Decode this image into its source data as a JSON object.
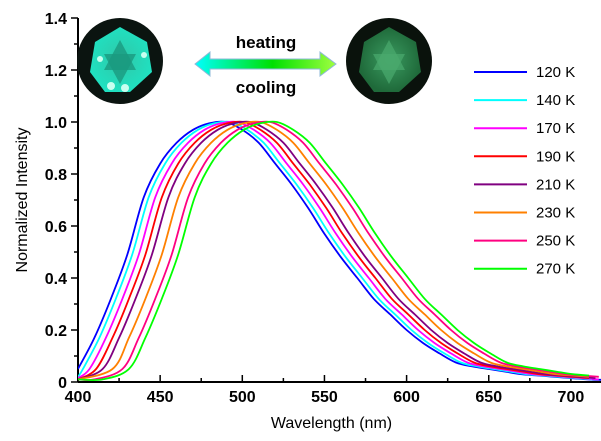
{
  "chart_data": {
    "type": "line",
    "title": "",
    "xlabel": "Wavelength (nm)",
    "ylabel": "Normalized Intensity",
    "xlim": [
      400,
      720
    ],
    "ylim": [
      0,
      1.4
    ],
    "xticks": [
      400,
      450,
      500,
      550,
      600,
      650,
      700
    ],
    "xtick_labels": [
      "400",
      "450",
      "500",
      "550",
      "600",
      "650",
      "700"
    ],
    "yticks": [
      0,
      0.2,
      0.4,
      0.6,
      0.8,
      1.0,
      1.2,
      1.4
    ],
    "ytick_labels": [
      "0",
      "0.2",
      "0.4",
      "0.6",
      "0.8",
      "1.0",
      "1.2",
      "1.4"
    ],
    "grid": false,
    "legend_position": "right",
    "annotations": {
      "top": "heating",
      "bottom": "cooling",
      "arrow_colors": [
        "#00ffff",
        "#00e000",
        "#a0ff40"
      ]
    },
    "series": [
      {
        "name": "120 K",
        "color": "#0000ff",
        "x": [
          400,
          410,
          420,
          430,
          440,
          450,
          460,
          470,
          480,
          490,
          500,
          510,
          520,
          530,
          540,
          550,
          560,
          570,
          580,
          590,
          600,
          610,
          620,
          630,
          640,
          650,
          660,
          670,
          680,
          690,
          700,
          710,
          720
        ],
        "y": [
          0.05,
          0.17,
          0.32,
          0.49,
          0.71,
          0.84,
          0.92,
          0.97,
          0.995,
          1.0,
          0.97,
          0.92,
          0.84,
          0.76,
          0.67,
          0.57,
          0.48,
          0.4,
          0.32,
          0.26,
          0.2,
          0.15,
          0.11,
          0.075,
          0.06,
          0.05,
          0.04,
          0.03,
          0.025,
          0.02,
          0.015,
          0.01,
          0.008
        ]
      },
      {
        "name": "140 K",
        "color": "#00ffff",
        "x": [
          400,
          403,
          413,
          423,
          433,
          443,
          453,
          463,
          473,
          483,
          493,
          503,
          513,
          523,
          533,
          543,
          553,
          563,
          573,
          583,
          593,
          603,
          613,
          623,
          633,
          643,
          653,
          663,
          673,
          683,
          693,
          703,
          713
        ],
        "y": [
          0.02,
          0.05,
          0.17,
          0.32,
          0.49,
          0.71,
          0.84,
          0.92,
          0.97,
          0.995,
          1.0,
          0.97,
          0.92,
          0.84,
          0.76,
          0.67,
          0.57,
          0.48,
          0.4,
          0.32,
          0.26,
          0.2,
          0.15,
          0.11,
          0.075,
          0.06,
          0.05,
          0.04,
          0.03,
          0.025,
          0.02,
          0.015,
          0.01
        ]
      },
      {
        "name": "170 K",
        "color": "#ff00ff",
        "x": [
          400,
          407,
          417,
          427,
          437,
          447,
          457,
          467,
          477,
          487,
          497,
          507,
          517,
          527,
          537,
          547,
          557,
          567,
          577,
          587,
          597,
          607,
          617,
          627,
          637,
          647,
          657,
          667,
          677,
          687,
          697,
          707,
          717
        ],
        "y": [
          0.015,
          0.05,
          0.17,
          0.32,
          0.49,
          0.71,
          0.84,
          0.92,
          0.97,
          0.995,
          1.0,
          0.97,
          0.92,
          0.84,
          0.76,
          0.67,
          0.57,
          0.48,
          0.4,
          0.32,
          0.26,
          0.2,
          0.15,
          0.11,
          0.075,
          0.06,
          0.05,
          0.04,
          0.03,
          0.025,
          0.02,
          0.015,
          0.01
        ]
      },
      {
        "name": "190 K",
        "color": "#ff0000",
        "x": [
          400,
          411,
          421,
          431,
          441,
          451,
          461,
          471,
          481,
          491,
          501,
          511,
          521,
          531,
          541,
          551,
          561,
          571,
          581,
          591,
          601,
          611,
          621,
          631,
          641,
          651,
          661,
          671,
          681,
          691,
          701,
          711
        ],
        "y": [
          0.01,
          0.05,
          0.17,
          0.32,
          0.49,
          0.71,
          0.84,
          0.92,
          0.97,
          0.995,
          1.0,
          0.97,
          0.92,
          0.84,
          0.76,
          0.67,
          0.57,
          0.48,
          0.4,
          0.32,
          0.26,
          0.2,
          0.15,
          0.11,
          0.075,
          0.06,
          0.05,
          0.04,
          0.03,
          0.025,
          0.02,
          0.015
        ]
      },
      {
        "name": "210 K",
        "color": "#800080",
        "x": [
          400,
          415,
          425,
          435,
          445,
          455,
          465,
          475,
          485,
          495,
          505,
          515,
          525,
          535,
          545,
          555,
          565,
          575,
          585,
          595,
          605,
          615,
          625,
          635,
          645,
          655,
          665,
          675,
          685,
          695,
          705,
          715
        ],
        "y": [
          0.01,
          0.05,
          0.17,
          0.32,
          0.49,
          0.71,
          0.84,
          0.92,
          0.97,
          0.995,
          1.0,
          0.97,
          0.92,
          0.84,
          0.76,
          0.67,
          0.57,
          0.48,
          0.4,
          0.32,
          0.26,
          0.2,
          0.15,
          0.11,
          0.075,
          0.06,
          0.05,
          0.04,
          0.03,
          0.025,
          0.02,
          0.015
        ]
      },
      {
        "name": "230 K",
        "color": "#ff8000",
        "x": [
          400,
          421,
          431,
          441,
          451,
          461,
          471,
          481,
          491,
          501,
          511,
          521,
          531,
          541,
          551,
          561,
          571,
          581,
          591,
          601,
          611,
          621,
          631,
          641,
          651,
          661,
          671,
          681,
          691,
          701,
          711
        ],
        "y": [
          0.01,
          0.05,
          0.17,
          0.32,
          0.49,
          0.71,
          0.84,
          0.92,
          0.97,
          0.995,
          1.0,
          0.97,
          0.92,
          0.84,
          0.76,
          0.67,
          0.57,
          0.48,
          0.4,
          0.32,
          0.26,
          0.2,
          0.15,
          0.11,
          0.075,
          0.06,
          0.05,
          0.04,
          0.03,
          0.025,
          0.02
        ]
      },
      {
        "name": "250 K",
        "color": "#ff0080",
        "x": [
          400,
          410,
          427,
          437,
          447,
          457,
          467,
          477,
          487,
          497,
          507,
          517,
          527,
          537,
          547,
          557,
          567,
          577,
          587,
          597,
          607,
          617,
          627,
          637,
          647,
          657,
          667,
          677,
          687,
          697,
          707,
          717
        ],
        "y": [
          0.01,
          0.01,
          0.05,
          0.17,
          0.32,
          0.49,
          0.71,
          0.84,
          0.92,
          0.97,
          0.995,
          1.0,
          0.97,
          0.92,
          0.84,
          0.76,
          0.67,
          0.57,
          0.48,
          0.4,
          0.32,
          0.26,
          0.2,
          0.15,
          0.11,
          0.075,
          0.06,
          0.05,
          0.04,
          0.03,
          0.025,
          0.02
        ]
      },
      {
        "name": "270 K",
        "color": "#00ff00",
        "x": [
          400,
          415,
          431,
          441,
          451,
          461,
          471,
          481,
          491,
          501,
          511,
          521,
          531,
          541,
          551,
          561,
          571,
          581,
          591,
          601,
          611,
          621,
          631,
          641,
          651,
          661,
          671,
          681,
          691,
          701,
          711
        ],
        "y": [
          0.01,
          0.01,
          0.05,
          0.17,
          0.32,
          0.49,
          0.71,
          0.84,
          0.92,
          0.97,
          0.995,
          1.0,
          0.97,
          0.92,
          0.84,
          0.76,
          0.67,
          0.57,
          0.48,
          0.4,
          0.32,
          0.26,
          0.2,
          0.15,
          0.11,
          0.075,
          0.06,
          0.05,
          0.04,
          0.03,
          0.025
        ]
      }
    ]
  }
}
